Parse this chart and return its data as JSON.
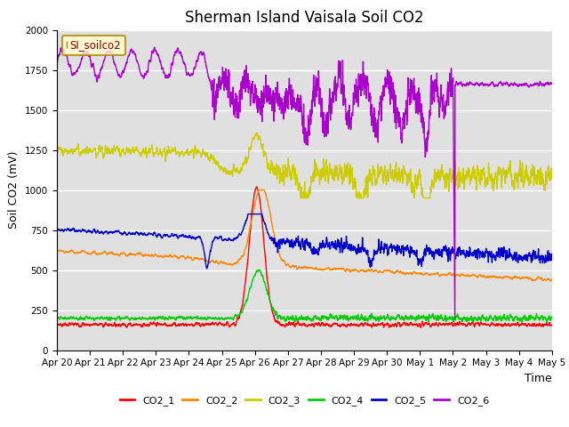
{
  "title": "Sherman Island Vaisala Soil CO2",
  "ylabel": "Soil CO2 (mV)",
  "xlabel": "Time",
  "legend_label": "SI_soilco2",
  "ylim": [
    0,
    2000
  ],
  "series_colors": {
    "CO2_1": "#ff0000",
    "CO2_2": "#ff8800",
    "CO2_3": "#cccc00",
    "CO2_4": "#00cc00",
    "CO2_5": "#0000cc",
    "CO2_6": "#aa00cc"
  },
  "bg_color": "#e0e0e0",
  "tick_labels": [
    "Apr 20",
    "Apr 21",
    "Apr 22",
    "Apr 23",
    "Apr 24",
    "Apr 25",
    "Apr 26",
    "Apr 27",
    "Apr 28",
    "Apr 29",
    "Apr 30",
    "May 1",
    "May 2",
    "May 3",
    "May 4",
    "May 5"
  ],
  "n_points": 3000,
  "title_fontsize": 12,
  "axis_fontsize": 9,
  "tick_fontsize": 7.5
}
